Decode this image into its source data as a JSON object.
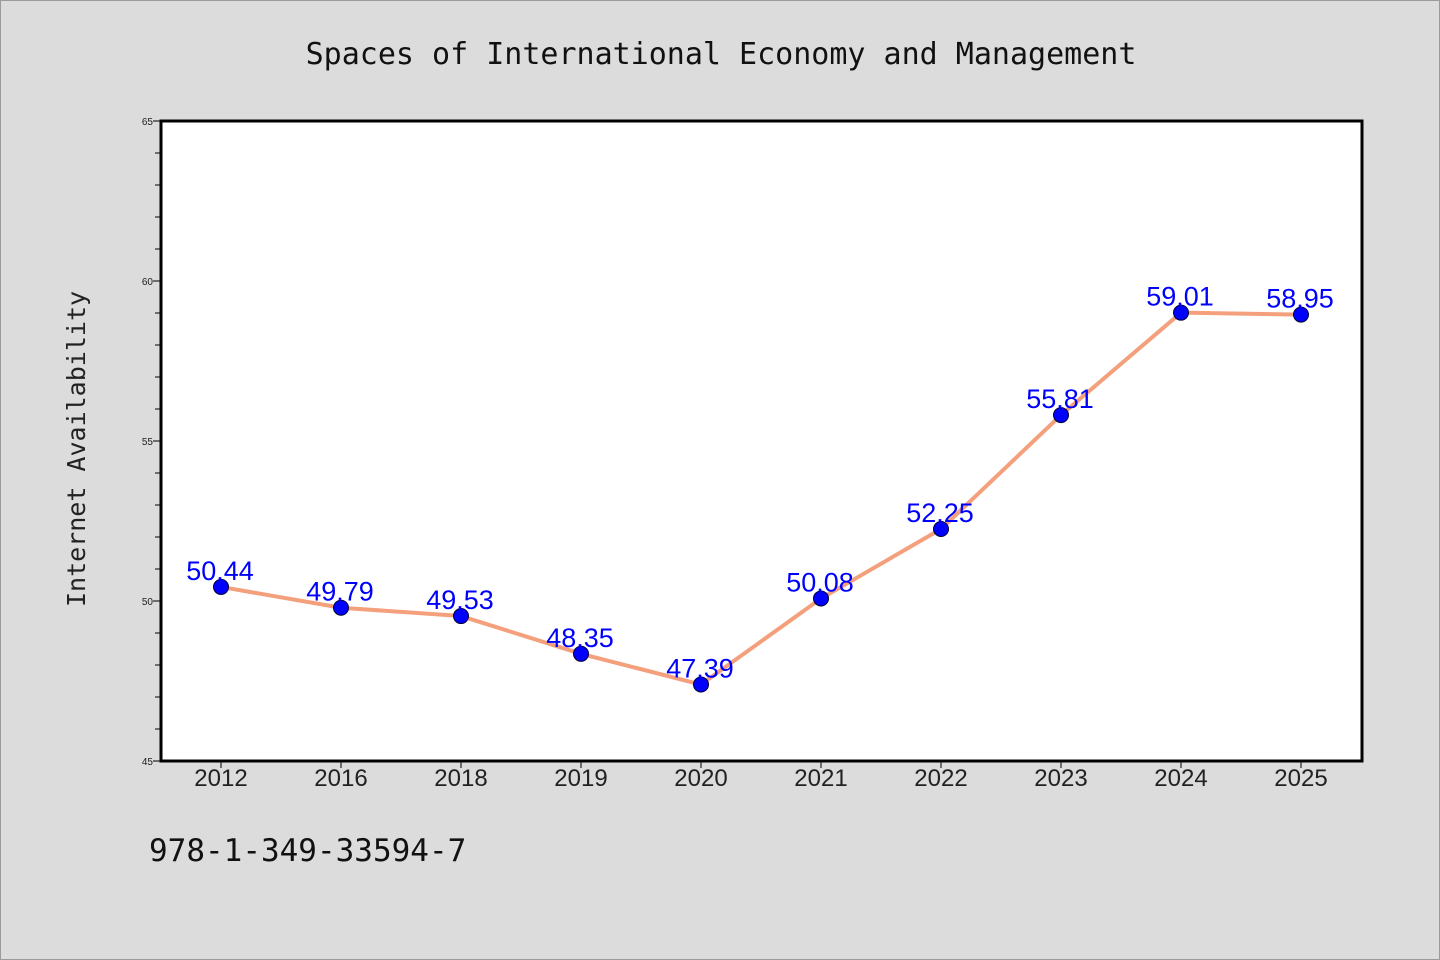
{
  "chart_data": {
    "type": "line",
    "title": "Spaces of International Economy and Management",
    "xlabel": "",
    "ylabel": "Internet Availability",
    "categories": [
      "2012",
      "2016",
      "2018",
      "2019",
      "2020",
      "2021",
      "2022",
      "2023",
      "2024",
      "2025"
    ],
    "series": [
      {
        "values": [
          50.44,
          49.79,
          49.53,
          48.35,
          47.39,
          50.08,
          52.25,
          55.81,
          59.01,
          58.95
        ],
        "labels": [
          "50.44",
          "49.79",
          "49.53",
          "48.35",
          "47.39",
          "50.08",
          "52.25",
          "55.81",
          "59.01",
          "58.95"
        ]
      }
    ],
    "ylim": [
      45,
      65
    ],
    "yticks": [
      "45",
      "50",
      "55",
      "60",
      "65"
    ],
    "grid": false,
    "legend": "none",
    "colors": {
      "line": "#f4a07c",
      "marker": "#0000ff",
      "data_label": "#0000ff",
      "plot_background": "#ffffff",
      "page_background": "#dcdcdc"
    }
  },
  "footnote": "978-1-349-33594-7"
}
